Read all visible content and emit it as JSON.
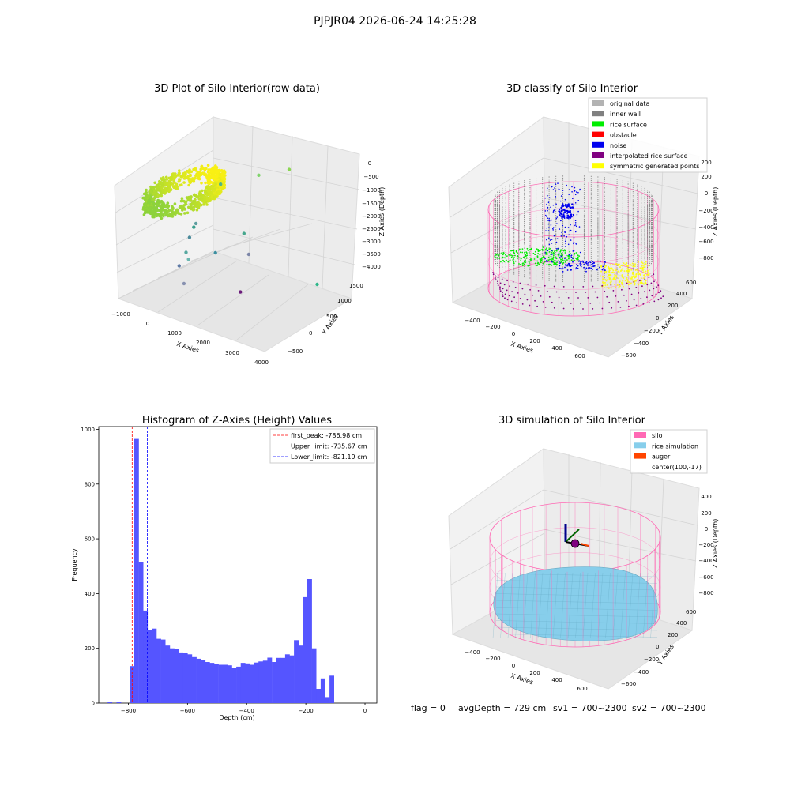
{
  "suptitle": "PJPJR04 2026-06-24 14:25:28",
  "footer": {
    "flag": "flag = 0",
    "avg_depth": "avgDepth = 729 cm",
    "sv1": "sv1 = 700~2300",
    "sv2": "sv2 = 700~2300"
  },
  "colors": {
    "hist_bar": "#5555ff",
    "first_peak_line": "#ff0000",
    "limit_line": "#0000ff",
    "original_data": "#b3b3b3",
    "inner_wall": "#808080",
    "rice_surface": "#00ee00",
    "obstacle": "#ff0000",
    "noise": "#0000ee",
    "interpolated_rice_surface": "#800080",
    "symmetric_generated_points": "#ffff00",
    "silo": "#ff69b4",
    "rice_simulation": "#87ceeb",
    "auger": "#ff4500"
  },
  "chart_data": [
    {
      "type": "scatter",
      "title": "3D Plot of Silo Interior(row data)",
      "xlabel": "X Axies",
      "ylabel": "Y Axies",
      "zlabel": "Z Axies (Depth)",
      "x_ticks": [
        "−1000",
        "0",
        "1000",
        "2000",
        "3000",
        "4000"
      ],
      "y_ticks": [
        "−500",
        "0",
        "500",
        "1000",
        "1500"
      ],
      "z_ticks": [
        "0",
        "−500",
        "−1000",
        "−1500",
        "−2000",
        "−2500",
        "−3000",
        "−3500",
        "−4000"
      ],
      "xlim": [
        -1000,
        4000
      ],
      "ylim": [
        -700,
        1700
      ],
      "zlim": [
        -4200,
        200
      ],
      "ring": {
        "center_x": 300,
        "center_y": 0,
        "radius": 700,
        "z": -800
      },
      "outliers": [
        {
          "x": 1500,
          "y": 1000,
          "z": -500
        },
        {
          "x": 2000,
          "y": 1400,
          "z": -400
        },
        {
          "x": 600,
          "y": 700,
          "z": -900
        },
        {
          "x": 900,
          "y": -200,
          "z": -1600
        },
        {
          "x": 1400,
          "y": 700,
          "z": -2200
        },
        {
          "x": 1100,
          "y": 200,
          "z": -2600
        },
        {
          "x": 1700,
          "y": 600,
          "z": -2700
        },
        {
          "x": 3500,
          "y": 1000,
          "z": -3300
        },
        {
          "x": 300,
          "y": 300,
          "z": -2000
        },
        {
          "x": 350,
          "y": 100,
          "z": -2300
        },
        {
          "x": 500,
          "y": -100,
          "z": -2600
        },
        {
          "x": 450,
          "y": 0,
          "z": -2900
        },
        {
          "x": 400,
          "y": -200,
          "z": -3000
        },
        {
          "x": 700,
          "y": -300,
          "z": -3400
        },
        {
          "x": 2900,
          "y": -500,
          "z": -2800
        }
      ]
    },
    {
      "type": "scatter",
      "title": "3D classify of Silo Interior",
      "xlabel": "X Axies",
      "ylabel": "Y Axies",
      "zlabel": "Z Axies (Depth)",
      "x_ticks": [
        "−400",
        "−200",
        "0",
        "200",
        "400",
        "600"
      ],
      "y_ticks": [
        "−600",
        "−400",
        "−200",
        "0",
        "200",
        "400",
        "600"
      ],
      "z_ticks": [
        "200",
        "0",
        "−200",
        "−400",
        "−600",
        "−800"
      ],
      "legend": [
        "original data",
        "inner wall",
        "rice surface",
        "obstacle",
        "noise",
        "interpolated rice surface",
        "symmetric generated points"
      ],
      "legend_position": "top-right"
    },
    {
      "type": "bar",
      "title": "Histogram of Z-Axies (Height) Values",
      "xlabel": "Depth (cm)",
      "ylabel": "Frequency",
      "x_ticks": [
        -800,
        -600,
        -400,
        -200,
        0
      ],
      "y_ticks": [
        0,
        200,
        400,
        600,
        800,
        1000
      ],
      "xlim": [
        -900,
        40
      ],
      "ylim": [
        0,
        1010
      ],
      "bin_width": 15,
      "bins": [
        {
          "x": -900,
          "v": 0
        },
        {
          "x": -885,
          "v": 0
        },
        {
          "x": -870,
          "v": 5
        },
        {
          "x": -855,
          "v": 0
        },
        {
          "x": -840,
          "v": 5
        },
        {
          "x": -825,
          "v": 0
        },
        {
          "x": -810,
          "v": 0
        },
        {
          "x": -795,
          "v": 135
        },
        {
          "x": -780,
          "v": 965
        },
        {
          "x": -765,
          "v": 515
        },
        {
          "x": -750,
          "v": 338
        },
        {
          "x": -735,
          "v": 268
        },
        {
          "x": -720,
          "v": 272
        },
        {
          "x": -705,
          "v": 235
        },
        {
          "x": -690,
          "v": 232
        },
        {
          "x": -675,
          "v": 210
        },
        {
          "x": -660,
          "v": 200
        },
        {
          "x": -645,
          "v": 198
        },
        {
          "x": -630,
          "v": 185
        },
        {
          "x": -615,
          "v": 182
        },
        {
          "x": -600,
          "v": 178
        },
        {
          "x": -585,
          "v": 168
        },
        {
          "x": -570,
          "v": 162
        },
        {
          "x": -555,
          "v": 158
        },
        {
          "x": -540,
          "v": 150
        },
        {
          "x": -525,
          "v": 147
        },
        {
          "x": -510,
          "v": 143
        },
        {
          "x": -495,
          "v": 140
        },
        {
          "x": -480,
          "v": 140
        },
        {
          "x": -465,
          "v": 138
        },
        {
          "x": -450,
          "v": 130
        },
        {
          "x": -435,
          "v": 133
        },
        {
          "x": -420,
          "v": 147
        },
        {
          "x": -405,
          "v": 145
        },
        {
          "x": -390,
          "v": 140
        },
        {
          "x": -375,
          "v": 148
        },
        {
          "x": -360,
          "v": 152
        },
        {
          "x": -345,
          "v": 155
        },
        {
          "x": -330,
          "v": 166
        },
        {
          "x": -315,
          "v": 150
        },
        {
          "x": -300,
          "v": 165
        },
        {
          "x": -285,
          "v": 165
        },
        {
          "x": -270,
          "v": 178
        },
        {
          "x": -255,
          "v": 174
        },
        {
          "x": -240,
          "v": 230
        },
        {
          "x": -225,
          "v": 210
        },
        {
          "x": -210,
          "v": 387
        },
        {
          "x": -195,
          "v": 453
        },
        {
          "x": -180,
          "v": 200
        },
        {
          "x": -165,
          "v": 52
        },
        {
          "x": -150,
          "v": 90
        },
        {
          "x": -135,
          "v": 22
        },
        {
          "x": -120,
          "v": 100
        }
      ],
      "vlines": [
        {
          "x": -786.98,
          "label": "first_peak: -786.98 cm",
          "kind": "first_peak"
        },
        {
          "x": -735.67,
          "label": "Upper_limit: -735.67 cm",
          "kind": "limit"
        },
        {
          "x": -821.19,
          "label": "Lower_limit: -821.19 cm",
          "kind": "limit"
        }
      ],
      "legend_position": "top-right"
    },
    {
      "type": "scatter",
      "title": "3D simulation of Silo Interior",
      "xlabel": "X Axies",
      "ylabel": "Y Axies",
      "zlabel": "Z Axies (Depth)",
      "x_ticks": [
        "−400",
        "−200",
        "0",
        "200",
        "400",
        "600"
      ],
      "y_ticks": [
        "−600",
        "−400",
        "−200",
        "0",
        "200",
        "400",
        "600"
      ],
      "z_ticks": [
        "400",
        "200",
        "0",
        "−200",
        "−400",
        "−600",
        "−800"
      ],
      "legend": [
        "silo",
        "rice simulation",
        "auger",
        "center(100,-17)"
      ],
      "legend_position": "top-right"
    }
  ]
}
